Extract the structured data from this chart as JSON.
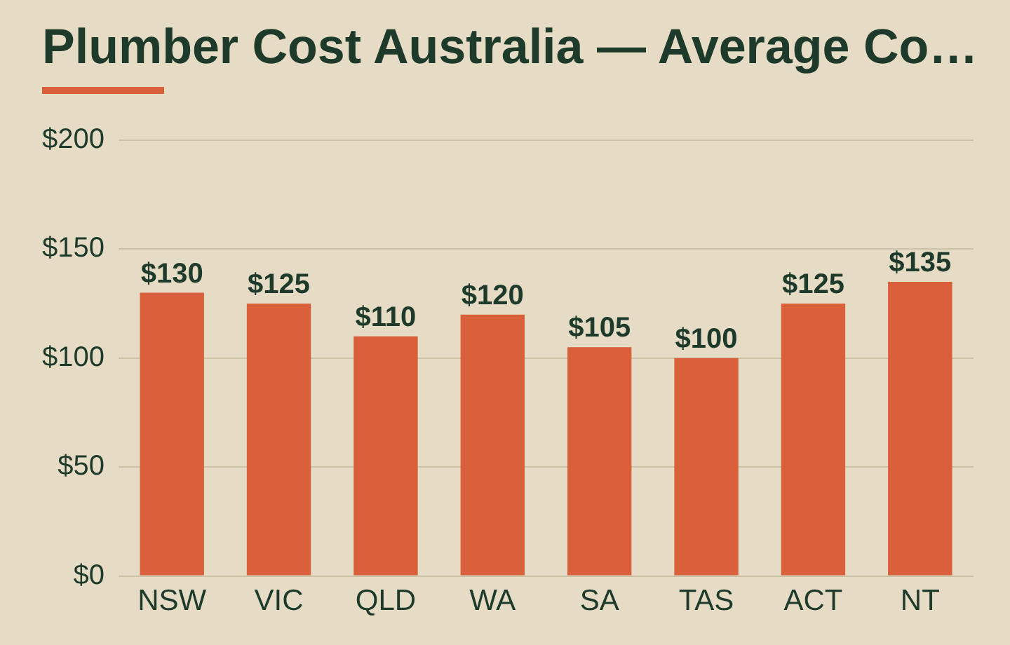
{
  "chart_data": {
    "type": "bar",
    "title": "Plumber Cost Australia — Average Co…",
    "categories": [
      "NSW",
      "VIC",
      "QLD",
      "WA",
      "SA",
      "TAS",
      "ACT",
      "NT"
    ],
    "values": [
      130,
      125,
      110,
      120,
      105,
      100,
      125,
      135
    ],
    "value_labels": [
      "$130",
      "$125",
      "$110",
      "$120",
      "$105",
      "$100",
      "$125",
      "$135"
    ],
    "color": "#d9603b",
    "ylim": [
      0,
      200
    ],
    "yticks": [
      {
        "value": 0,
        "label": "$0"
      },
      {
        "value": 50,
        "label": "$50"
      },
      {
        "value": 100,
        "label": "$100"
      },
      {
        "value": 150,
        "label": "$150"
      },
      {
        "value": 200,
        "label": "$200"
      }
    ],
    "grid": "y",
    "legend": false
  }
}
